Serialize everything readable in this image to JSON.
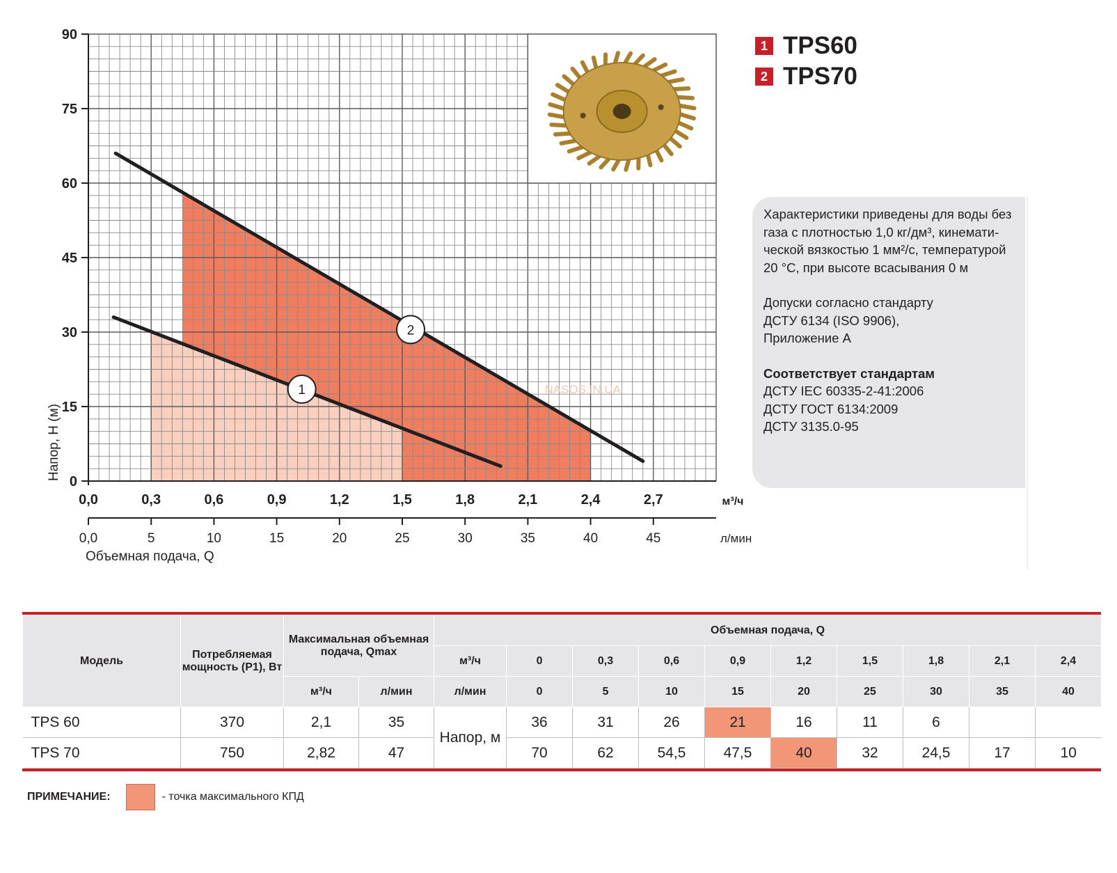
{
  "chart_data": {
    "type": "line",
    "ylabel": "Напор, Н (м)",
    "xlabel": "Объемная подача, Q",
    "x_unit_top": "м³/ч",
    "x_unit_bottom": "л/мин",
    "xlim": [
      0,
      3.0
    ],
    "ylim": [
      0,
      90
    ],
    "grid": true,
    "y_ticks": [
      "90",
      "75",
      "60",
      "45",
      "30",
      "15",
      "0"
    ],
    "y_tick_values": [
      90,
      75,
      60,
      45,
      30,
      15,
      0
    ],
    "x_ticks_top": [
      "0,0",
      "0,3",
      "0,6",
      "0,9",
      "1,2",
      "1,5",
      "1,8",
      "2,1",
      "2,4",
      "2,7"
    ],
    "x_tick_values": [
      0,
      0.3,
      0.6,
      0.9,
      1.2,
      1.5,
      1.8,
      2.1,
      2.4,
      2.7
    ],
    "x_ticks_bottom": [
      "0,0",
      "5",
      "10",
      "15",
      "20",
      "25",
      "30",
      "35",
      "40",
      "45"
    ],
    "series": [
      {
        "name": "TPS60",
        "label": "1",
        "x": [
          0.12,
          1.97
        ],
        "y": [
          33,
          3
        ],
        "label_at": [
          1.02,
          18.5
        ],
        "operating_range": {
          "x": [
            0.3,
            1.5
          ],
          "color": "#f9d0bf"
        }
      },
      {
        "name": "TPS70",
        "label": "2",
        "x": [
          0.13,
          2.65
        ],
        "y": [
          66,
          4
        ],
        "label_at": [
          1.54,
          30.5
        ],
        "operating_range": {
          "x": [
            0.45,
            2.4
          ],
          "color": "#ef7d60"
        }
      }
    ],
    "watermark": "NASOS.IN.UA",
    "curve_color": "#231f20"
  },
  "legend": {
    "items": [
      {
        "num": "1",
        "label": "TPS60"
      },
      {
        "num": "2",
        "label": "TPS70"
      }
    ]
  },
  "image": {
    "caption": "impeller-photo",
    "color": "#c9a04a"
  },
  "info": {
    "lines1": [
      "Характеристики приведены для воды без",
      "газа с плотностью 1,0 кг/дм³, кинемати-",
      "ческой вязкостью 1 мм²/с, температурой",
      "20 °С, при высоте всасывания 0 м"
    ],
    "lines2": [
      "Допуски согласно стандарту",
      "ДСТУ 6134 (ISO 9906),",
      "Приложение А"
    ],
    "standards_title": "Соответствует стандартам",
    "standards": [
      "ДСТУ IEC 60335-2-41:2006",
      "ДСТУ ГОСТ 6134:2009",
      "ДСТУ 3135.0-95"
    ]
  },
  "table": {
    "h_model": "Модель",
    "h_power": "Потребляемая мощность (Р1), Вт",
    "h_qmax": "Максимальная объемная подача, Qmax",
    "h_flow": "Объемная подача, Q",
    "unit_m3h": "м³/ч",
    "unit_lmin": "л/мин",
    "flow_m3h": [
      "0",
      "0,3",
      "0,6",
      "0,9",
      "1,2",
      "1,5",
      "1,8",
      "2,1",
      "2,4"
    ],
    "flow_lmin": [
      "0",
      "5",
      "10",
      "15",
      "20",
      "25",
      "30",
      "35",
      "40"
    ],
    "head_label": "Напор, м",
    "rows": [
      {
        "model": "TPS 60",
        "power": "370",
        "qmax_m3h": "2,1",
        "qmax_lmin": "35",
        "head": [
          "36",
          "31",
          "26",
          "21",
          "16",
          "11",
          "6",
          "",
          ""
        ],
        "best_index": 3
      },
      {
        "model": "TPS 70",
        "power": "750",
        "qmax_m3h": "2,82",
        "qmax_lmin": "47",
        "head": [
          "70",
          "62",
          "54,5",
          "47,5",
          "40",
          "32",
          "24,5",
          "17",
          "10"
        ],
        "best_index": 4
      }
    ],
    "highlight_color": "#f29678",
    "rule_color": "#c8202a"
  },
  "note": {
    "title": "ПРИМЕЧАНИЕ:",
    "text": "- точка максимального КПД"
  }
}
